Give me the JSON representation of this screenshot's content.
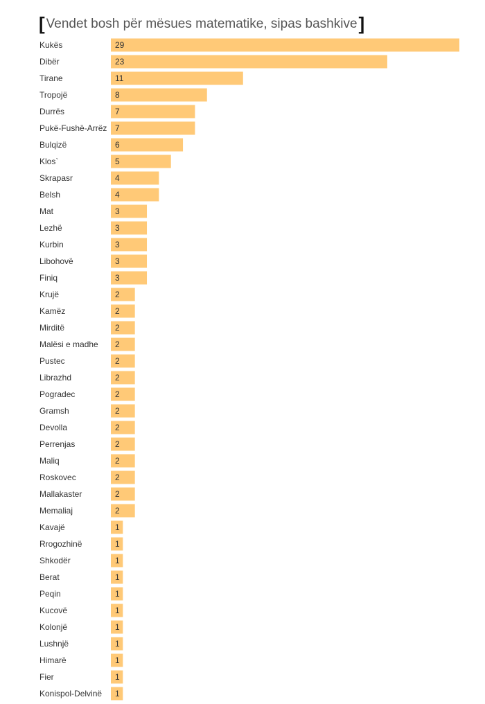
{
  "chart_data": {
    "type": "bar",
    "orientation": "horizontal",
    "title": "Vendet bosh për mësues matematike, sipas bashkive",
    "title_prefix": "[",
    "title_suffix": "]",
    "bar_color": "#ffc977",
    "xlim": [
      0,
      29
    ],
    "grid": false,
    "legend": "none",
    "categories": [
      "Kukës",
      "Dibër",
      "Tirane",
      "Tropojë",
      "Durrës",
      "Pukë-Fushë-Arrëz",
      "Bulqizë",
      "Klos`",
      "Skrapasr",
      "Belsh",
      "Mat",
      "Lezhë",
      "Kurbin",
      "Libohovë",
      "Finiq",
      "Krujë",
      "Kamëz",
      "Mirditë",
      "Malësi e madhe",
      "Pustec",
      "Librazhd",
      "Pogradec",
      "Gramsh",
      "Devolla",
      "Perrenjas",
      "Maliq",
      "Roskovec",
      "Mallakaster",
      "Memaliaj",
      "Kavajë",
      "Rrogozhinë",
      "Shkodër",
      "Berat",
      "Peqin",
      "Kucovë",
      "Kolonjë",
      "Lushnjë",
      "Himarë",
      "Fier",
      "Konispol-Delvinë"
    ],
    "values": [
      29,
      23,
      11,
      8,
      7,
      7,
      6,
      5,
      4,
      4,
      3,
      3,
      3,
      3,
      3,
      2,
      2,
      2,
      2,
      2,
      2,
      2,
      2,
      2,
      2,
      2,
      2,
      2,
      2,
      1,
      1,
      1,
      1,
      1,
      1,
      1,
      1,
      1,
      1,
      1
    ]
  }
}
